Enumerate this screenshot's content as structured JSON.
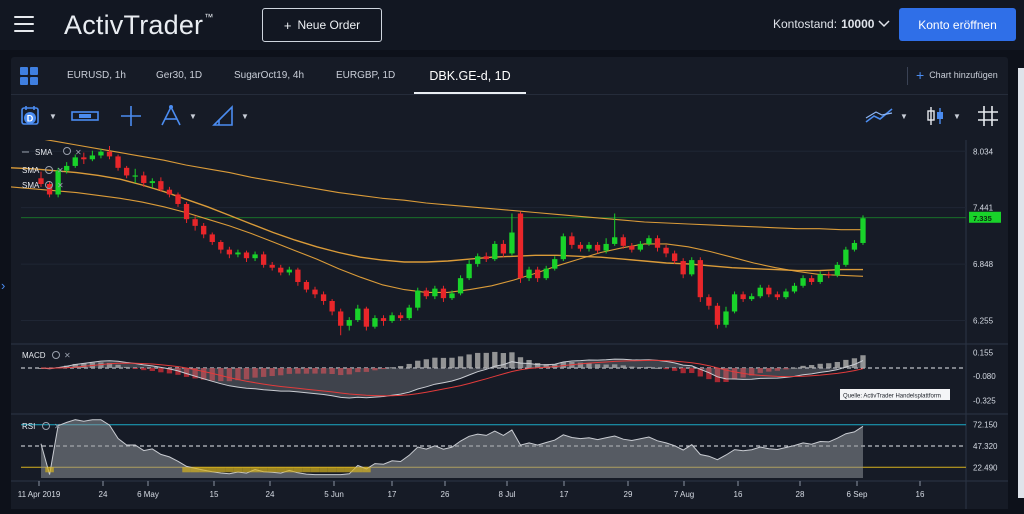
{
  "app": {
    "brand": "ActivTrader",
    "trademark": "™"
  },
  "header": {
    "new_order_label": "Neue Order",
    "balance_label": "Kontostand:",
    "balance_value": "10000",
    "open_account_label": "Konto eröffnen"
  },
  "tabs": [
    {
      "label": "EURUSD, 1h"
    },
    {
      "label": "Ger30, 1D"
    },
    {
      "label": "SugarOct19, 4h"
    },
    {
      "label": "EURGBP, 1D"
    },
    {
      "label": "DBK.GE-d, 1D",
      "active": true
    }
  ],
  "add_chart_label": "Chart hinzufügen",
  "toolbar": {
    "icons": [
      "calendar-d-icon",
      "ruler-icon",
      "crosshair-icon",
      "pitchfork-icon",
      "drawing-tools-icon",
      "indicator-icon",
      "candle-type-icon",
      "grid-layout-icon"
    ]
  },
  "colors": {
    "up": "#19d32a",
    "down": "#e8262a",
    "sma": "#e5a23a",
    "accent": "#2f6fe8",
    "macd_hist_pos": "#a8a8a8",
    "macd_hist_neg": "#c02a35",
    "rsi_fill": "#8d8f95",
    "rsi_upper": "#1aa9c6",
    "rsi_lower": "#d6b21f"
  },
  "indicators": {
    "sma_labels": [
      "SMA",
      "SMA",
      "SMA"
    ],
    "macd_label": "MACD",
    "rsi_label": "RSI"
  },
  "source_note": "Quelle: ActivTrader Handelsplattform",
  "chart_data": {
    "type": "candlestick",
    "symbol": "DBK.GE-d, 1D",
    "price_axis": [
      "8.034",
      "7.441",
      "6.848",
      "6.255"
    ],
    "current_price": "7.335",
    "macd_axis": [
      "0.155",
      "-0.080",
      "-0.325"
    ],
    "rsi_axis": [
      "72.150",
      "47.320",
      "22.490"
    ],
    "x_ticks": [
      "11 Apr 2019",
      "24",
      "6 May",
      "15",
      "24",
      "5 Jun",
      "17",
      "26",
      "8 Jul",
      "17",
      "29",
      "7 Aug",
      "16",
      "28",
      "6 Sep",
      "16"
    ],
    "ylim": [
      6.05,
      8.1
    ],
    "candles": [
      [
        7.75,
        7.69,
        7.82,
        7.66
      ],
      [
        7.69,
        7.58,
        7.72,
        7.55
      ],
      [
        7.58,
        7.83,
        7.86,
        7.55
      ],
      [
        7.83,
        7.88,
        7.92,
        7.8
      ],
      [
        7.88,
        7.97,
        8.0,
        7.86
      ],
      [
        7.97,
        7.95,
        8.02,
        7.9
      ],
      [
        7.95,
        7.99,
        8.04,
        7.93
      ],
      [
        7.99,
        8.03,
        8.06,
        7.96
      ],
      [
        8.03,
        7.98,
        8.09,
        7.95
      ],
      [
        7.98,
        7.86,
        8.0,
        7.83
      ],
      [
        7.86,
        7.78,
        7.88,
        7.75
      ],
      [
        7.78,
        7.78,
        7.85,
        7.7
      ],
      [
        7.78,
        7.7,
        7.82,
        7.66
      ],
      [
        7.7,
        7.72,
        7.75,
        7.65
      ],
      [
        7.72,
        7.63,
        7.76,
        7.61
      ],
      [
        7.63,
        7.58,
        7.66,
        7.55
      ],
      [
        7.58,
        7.48,
        7.6,
        7.45
      ],
      [
        7.48,
        7.32,
        7.5,
        7.28
      ],
      [
        7.32,
        7.25,
        7.35,
        7.2
      ],
      [
        7.25,
        7.16,
        7.28,
        7.12
      ],
      [
        7.16,
        7.08,
        7.18,
        7.05
      ],
      [
        7.08,
        7.0,
        7.1,
        6.96
      ],
      [
        7.0,
        6.95,
        7.03,
        6.91
      ],
      [
        6.95,
        6.97,
        7.0,
        6.92
      ],
      [
        6.97,
        6.91,
        6.99,
        6.87
      ],
      [
        6.91,
        6.95,
        6.98,
        6.88
      ],
      [
        6.95,
        6.84,
        6.98,
        6.81
      ],
      [
        6.84,
        6.81,
        6.87,
        6.78
      ],
      [
        6.81,
        6.76,
        6.84,
        6.73
      ],
      [
        6.76,
        6.79,
        6.82,
        6.73
      ],
      [
        6.79,
        6.66,
        6.81,
        6.62
      ],
      [
        6.66,
        6.58,
        6.68,
        6.55
      ],
      [
        6.58,
        6.53,
        6.61,
        6.49
      ],
      [
        6.53,
        6.46,
        6.56,
        6.42
      ],
      [
        6.46,
        6.35,
        6.48,
        6.31
      ],
      [
        6.35,
        6.2,
        6.38,
        6.1
      ],
      [
        6.2,
        6.26,
        6.29,
        6.15
      ],
      [
        6.26,
        6.38,
        6.42,
        6.24
      ],
      [
        6.38,
        6.19,
        6.4,
        6.15
      ],
      [
        6.19,
        6.28,
        6.31,
        6.17
      ],
      [
        6.28,
        6.25,
        6.31,
        6.2
      ],
      [
        6.25,
        6.31,
        6.34,
        6.23
      ],
      [
        6.31,
        6.28,
        6.34,
        6.25
      ],
      [
        6.28,
        6.39,
        6.42,
        6.26
      ],
      [
        6.39,
        6.57,
        6.6,
        6.36
      ],
      [
        6.57,
        6.51,
        6.6,
        6.48
      ],
      [
        6.51,
        6.59,
        6.62,
        6.48
      ],
      [
        6.59,
        6.49,
        6.62,
        6.45
      ],
      [
        6.49,
        6.54,
        6.57,
        6.47
      ],
      [
        6.54,
        6.7,
        6.73,
        6.52
      ],
      [
        6.7,
        6.85,
        6.89,
        6.68
      ],
      [
        6.85,
        6.93,
        6.96,
        6.82
      ],
      [
        6.93,
        6.9,
        6.97,
        6.87
      ],
      [
        6.9,
        7.06,
        7.09,
        6.88
      ],
      [
        7.06,
        6.96,
        7.1,
        6.92
      ],
      [
        6.96,
        7.18,
        7.38,
        6.94
      ],
      [
        7.38,
        6.7,
        7.4,
        6.65
      ],
      [
        6.7,
        6.79,
        6.82,
        6.67
      ],
      [
        6.79,
        6.7,
        6.82,
        6.66
      ],
      [
        6.7,
        6.8,
        6.83,
        6.68
      ],
      [
        6.8,
        6.9,
        6.93,
        6.78
      ],
      [
        6.9,
        7.14,
        7.17,
        6.88
      ],
      [
        7.14,
        7.05,
        7.18,
        7.01
      ],
      [
        7.05,
        7.01,
        7.08,
        6.98
      ],
      [
        7.01,
        7.05,
        7.08,
        6.98
      ],
      [
        7.05,
        6.99,
        7.08,
        6.96
      ],
      [
        6.99,
        7.06,
        7.12,
        6.96
      ],
      [
        7.06,
        7.13,
        7.38,
        7.04
      ],
      [
        7.13,
        7.04,
        7.16,
        7.01
      ],
      [
        7.04,
        7.0,
        7.07,
        6.97
      ],
      [
        7.0,
        7.06,
        7.09,
        6.98
      ],
      [
        7.06,
        7.12,
        7.15,
        7.04
      ],
      [
        7.12,
        7.02,
        7.15,
        6.98
      ],
      [
        7.02,
        6.96,
        7.05,
        6.92
      ],
      [
        6.96,
        6.88,
        6.99,
        6.85
      ],
      [
        6.88,
        6.74,
        6.91,
        6.7
      ],
      [
        6.74,
        6.89,
        6.92,
        6.72
      ],
      [
        6.89,
        6.5,
        6.92,
        6.45
      ],
      [
        6.5,
        6.41,
        6.53,
        6.37
      ],
      [
        6.41,
        6.21,
        6.44,
        6.17
      ],
      [
        6.21,
        6.35,
        6.4,
        6.18
      ],
      [
        6.35,
        6.53,
        6.56,
        6.33
      ],
      [
        6.53,
        6.48,
        6.56,
        6.45
      ],
      [
        6.48,
        6.51,
        6.54,
        6.46
      ],
      [
        6.51,
        6.6,
        6.63,
        6.49
      ],
      [
        6.6,
        6.53,
        6.63,
        6.5
      ],
      [
        6.53,
        6.5,
        6.56,
        6.47
      ],
      [
        6.5,
        6.56,
        6.59,
        6.48
      ],
      [
        6.56,
        6.62,
        6.65,
        6.54
      ],
      [
        6.62,
        6.7,
        6.73,
        6.6
      ],
      [
        6.7,
        6.66,
        6.73,
        6.63
      ],
      [
        6.66,
        6.74,
        6.77,
        6.64
      ],
      [
        6.74,
        6.73,
        6.77,
        6.7
      ],
      [
        6.73,
        6.84,
        6.87,
        6.71
      ],
      [
        6.84,
        7.0,
        7.03,
        6.82
      ],
      [
        7.0,
        7.07,
        7.1,
        6.98
      ],
      [
        7.07,
        7.33,
        7.36,
        7.05
      ]
    ],
    "sma": [
      {
        "values": [
          7.66,
          7.64,
          7.62,
          7.6,
          7.57,
          7.54,
          7.5,
          7.45,
          7.39,
          7.32,
          7.25,
          7.17,
          7.08,
          6.99,
          6.9,
          6.8,
          6.71,
          6.63,
          6.58,
          6.55,
          6.55,
          6.58,
          6.62,
          6.68,
          6.75,
          6.83,
          6.9,
          6.97,
          7.02,
          7.06,
          7.06,
          7.03,
          6.98,
          6.92,
          6.86,
          6.81,
          6.77,
          6.74,
          6.73,
          6.72
        ]
      },
      {
        "values": [
          7.86,
          7.85,
          7.83,
          7.81,
          7.78,
          7.74,
          7.68,
          7.61,
          7.53,
          7.45,
          7.36,
          7.27,
          7.18,
          7.1,
          7.03,
          6.97,
          6.92,
          6.89,
          6.87,
          6.87,
          6.88,
          6.9,
          6.92,
          6.93,
          6.94,
          6.94,
          6.93,
          6.92,
          6.9,
          6.88,
          6.86,
          6.85,
          6.83,
          6.81,
          6.8,
          6.79,
          6.78,
          6.78,
          6.79,
          6.79
        ]
      },
      {
        "values": [
          8.22,
          8.18,
          8.14,
          8.1,
          8.06,
          8.02,
          7.98,
          7.94,
          7.89,
          7.85,
          7.81,
          7.76,
          7.72,
          7.68,
          7.64,
          7.6,
          7.57,
          7.54,
          7.52,
          7.49,
          7.47,
          7.45,
          7.43,
          7.41,
          7.39,
          7.37,
          7.35,
          7.33,
          7.31,
          7.29,
          7.28,
          7.27,
          7.26,
          7.25,
          7.24,
          7.23,
          7.22,
          7.22,
          7.21,
          7.21
        ]
      }
    ],
    "macd": {
      "ylim": [
        -0.42,
        0.2
      ]
    },
    "rsi": {
      "upper": 72.15,
      "mid": 47.32,
      "lower": 22.49,
      "ylim": [
        10,
        80
      ]
    }
  }
}
